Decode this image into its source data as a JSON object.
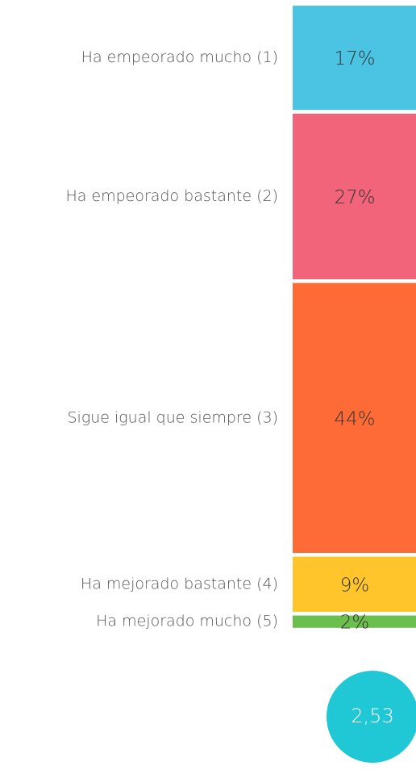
{
  "chart_data": {
    "type": "stacked-bar",
    "categories": [
      "Ha empeorado mucho (1)",
      "Ha empeorado bastante (2)",
      "Sigue igual que siempre (3)",
      "Ha mejorado bastante (4)",
      "Ha mejorado mucho (5)"
    ],
    "values": [
      17,
      27,
      44,
      9,
      2
    ],
    "value_labels": [
      "17%",
      "27%",
      "44%",
      "9%",
      "2%"
    ],
    "colors": [
      "#4bc3e3",
      "#f2647a",
      "#ff6b37",
      "#ffc52b",
      "#6bbf4c"
    ],
    "annotation": "2,53",
    "annotation_color": "#1fc8d4"
  }
}
